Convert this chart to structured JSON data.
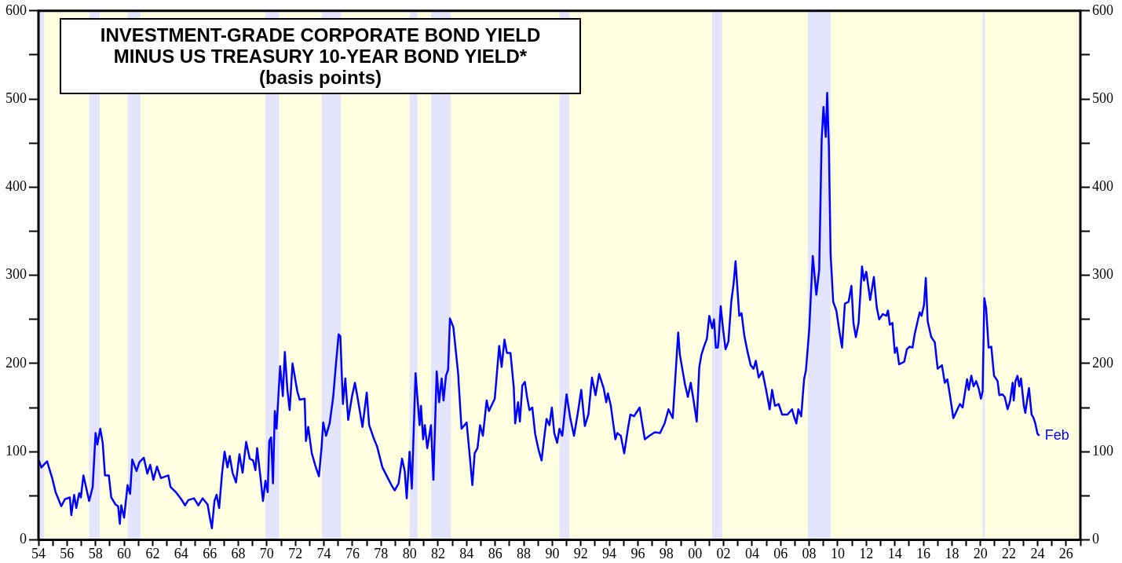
{
  "chart_data": {
    "type": "line",
    "title": "INVESTMENT-GRADE CORPORATE BOND YIELD MINUS US TREASURY 10-YEAR BOND YIELD*",
    "subtitle": "(basis points)",
    "xlim": [
      1954,
      2027
    ],
    "xticks": [
      {
        "value": 1954,
        "label": "54"
      },
      {
        "value": 1955,
        "label": null
      },
      {
        "value": 1956,
        "label": "56"
      },
      {
        "value": 1957,
        "label": null
      },
      {
        "value": 1958,
        "label": "58"
      },
      {
        "value": 1959,
        "label": null
      },
      {
        "value": 1960,
        "label": "60"
      },
      {
        "value": 1961,
        "label": null
      },
      {
        "value": 1962,
        "label": "62"
      },
      {
        "value": 1963,
        "label": null
      },
      {
        "value": 1964,
        "label": "64"
      },
      {
        "value": 1965,
        "label": null
      },
      {
        "value": 1966,
        "label": "66"
      },
      {
        "value": 1967,
        "label": null
      },
      {
        "value": 1968,
        "label": "68"
      },
      {
        "value": 1969,
        "label": null
      },
      {
        "value": 1970,
        "label": "70"
      },
      {
        "value": 1971,
        "label": null
      },
      {
        "value": 1972,
        "label": "72"
      },
      {
        "value": 1973,
        "label": null
      },
      {
        "value": 1974,
        "label": "74"
      },
      {
        "value": 1975,
        "label": null
      },
      {
        "value": 1976,
        "label": "76"
      },
      {
        "value": 1977,
        "label": null
      },
      {
        "value": 1978,
        "label": "78"
      },
      {
        "value": 1979,
        "label": null
      },
      {
        "value": 1980,
        "label": "80"
      },
      {
        "value": 1981,
        "label": null
      },
      {
        "value": 1982,
        "label": "82"
      },
      {
        "value": 1983,
        "label": null
      },
      {
        "value": 1984,
        "label": "84"
      },
      {
        "value": 1985,
        "label": null
      },
      {
        "value": 1986,
        "label": "86"
      },
      {
        "value": 1987,
        "label": null
      },
      {
        "value": 1988,
        "label": "88"
      },
      {
        "value": 1989,
        "label": null
      },
      {
        "value": 1990,
        "label": "90"
      },
      {
        "value": 1991,
        "label": null
      },
      {
        "value": 1992,
        "label": "92"
      },
      {
        "value": 1993,
        "label": null
      },
      {
        "value": 1994,
        "label": "94"
      },
      {
        "value": 1995,
        "label": null
      },
      {
        "value": 1996,
        "label": "96"
      },
      {
        "value": 1997,
        "label": null
      },
      {
        "value": 1998,
        "label": "98"
      },
      {
        "value": 1999,
        "label": null
      },
      {
        "value": 2000,
        "label": "00"
      },
      {
        "value": 2001,
        "label": null
      },
      {
        "value": 2002,
        "label": "02"
      },
      {
        "value": 2003,
        "label": null
      },
      {
        "value": 2004,
        "label": "04"
      },
      {
        "value": 2005,
        "label": null
      },
      {
        "value": 2006,
        "label": "06"
      },
      {
        "value": 2007,
        "label": null
      },
      {
        "value": 2008,
        "label": "08"
      },
      {
        "value": 2009,
        "label": null
      },
      {
        "value": 2010,
        "label": "10"
      },
      {
        "value": 2011,
        "label": null
      },
      {
        "value": 2012,
        "label": "12"
      },
      {
        "value": 2013,
        "label": null
      },
      {
        "value": 2014,
        "label": "14"
      },
      {
        "value": 2015,
        "label": null
      },
      {
        "value": 2016,
        "label": "16"
      },
      {
        "value": 2017,
        "label": null
      },
      {
        "value": 2018,
        "label": "18"
      },
      {
        "value": 2019,
        "label": null
      },
      {
        "value": 2020,
        "label": "20"
      },
      {
        "value": 2021,
        "label": null
      },
      {
        "value": 2022,
        "label": "22"
      },
      {
        "value": 2023,
        "label": null
      },
      {
        "value": 2024,
        "label": "24"
      },
      {
        "value": 2025,
        "label": null
      },
      {
        "value": 2026,
        "label": "26"
      },
      {
        "value": 2027,
        "label": null
      }
    ],
    "ylim": [
      0,
      600
    ],
    "yticks": [
      0,
      {
        "value": 50,
        "label": null
      },
      100,
      {
        "value": 150,
        "label": null
      },
      200,
      {
        "value": 250,
        "label": null
      },
      300,
      {
        "value": 350,
        "label": null
      },
      400,
      {
        "value": 450,
        "label": null
      },
      500,
      {
        "value": 550,
        "label": null
      },
      600
    ],
    "y2lim": [
      0,
      600
    ],
    "y2ticks": [
      0,
      {
        "value": 50,
        "label": null
      },
      100,
      {
        "value": 150,
        "label": null
      },
      200,
      {
        "value": 250,
        "label": null
      },
      300,
      {
        "value": 350,
        "label": null
      },
      400,
      {
        "value": 450,
        "label": null
      },
      500,
      {
        "value": 550,
        "label": null
      },
      600
    ],
    "legend": false,
    "marker": "none",
    "line_style": "solid",
    "bands": [
      {
        "axis": "x",
        "from": 1954,
        "to": 1954.4,
        "color": "#e4e4fc"
      },
      {
        "axis": "x",
        "from": 1957.55,
        "to": 1958.3,
        "color": "#e4e4fc"
      },
      {
        "axis": "x",
        "from": 1960.25,
        "to": 1961.15,
        "color": "#e4e4fc"
      },
      {
        "axis": "x",
        "from": 1969.9,
        "to": 1970.85,
        "color": "#e4e4fc"
      },
      {
        "axis": "x",
        "from": 1973.85,
        "to": 1975.2,
        "color": "#e4e4fc"
      },
      {
        "axis": "x",
        "from": 1980.0,
        "to": 1980.55,
        "color": "#e4e4fc"
      },
      {
        "axis": "x",
        "from": 1981.5,
        "to": 1982.9,
        "color": "#e4e4fc"
      },
      {
        "axis": "x",
        "from": 1990.5,
        "to": 1991.2,
        "color": "#e4e4fc"
      },
      {
        "axis": "x",
        "from": 2001.2,
        "to": 2001.9,
        "color": "#e4e4fc"
      },
      {
        "axis": "x",
        "from": 2007.9,
        "to": 2009.5,
        "color": "#e4e4fc"
      },
      {
        "axis": "x",
        "from": 2020.15,
        "to": 2020.3,
        "color": "#e4e4fc"
      }
    ],
    "annotations": [
      {
        "text": "Feb",
        "x": 2024.13,
        "y": 118
      }
    ],
    "series": [
      {
        "color": "#0000ff",
        "x": [
          1954.03,
          1954.2,
          1954.6,
          1954.96,
          1955.2,
          1955.6,
          1955.85,
          1956.2,
          1956.3,
          1956.5,
          1956.65,
          1956.85,
          1956.97,
          1957.15,
          1957.55,
          1957.8,
          1958.0,
          1958.13,
          1958.33,
          1958.5,
          1958.66,
          1958.93,
          1959.1,
          1959.4,
          1959.58,
          1959.7,
          1959.8,
          1960.0,
          1960.24,
          1960.42,
          1960.57,
          1960.87,
          1961.07,
          1961.38,
          1961.63,
          1961.83,
          1962.05,
          1962.3,
          1962.58,
          1963.1,
          1963.25,
          1963.63,
          1964.0,
          1964.27,
          1964.5,
          1964.9,
          1965.2,
          1965.5,
          1965.85,
          1966.0,
          1966.15,
          1966.33,
          1966.48,
          1966.66,
          1966.86,
          1967.04,
          1967.24,
          1967.4,
          1967.6,
          1967.84,
          1968.08,
          1968.3,
          1968.55,
          1968.8,
          1969.04,
          1969.2,
          1969.32,
          1969.52,
          1969.73,
          1969.9,
          1970.06,
          1970.17,
          1970.3,
          1970.43,
          1970.56,
          1970.68,
          1970.93,
          1971.12,
          1971.26,
          1971.44,
          1971.6,
          1971.8,
          1972.14,
          1972.3,
          1972.65,
          1972.74,
          1972.9,
          1973.15,
          1973.4,
          1973.65,
          1973.83,
          1973.95,
          1974.15,
          1974.4,
          1974.65,
          1974.83,
          1975.03,
          1975.15,
          1975.33,
          1975.5,
          1975.7,
          1975.97,
          1976.17,
          1976.35,
          1976.7,
          1977.0,
          1977.17,
          1977.47,
          1977.72,
          1978.1,
          1978.48,
          1978.73,
          1978.96,
          1979.23,
          1979.47,
          1979.66,
          1979.8,
          1980.0,
          1980.16,
          1980.42,
          1980.7,
          1980.8,
          1980.95,
          1981.07,
          1981.24,
          1981.5,
          1981.67,
          1981.9,
          1982.07,
          1982.25,
          1982.38,
          1982.55,
          1982.7,
          1982.83,
          1983.07,
          1983.4,
          1983.64,
          1984.0,
          1984.2,
          1984.4,
          1984.56,
          1984.76,
          1984.94,
          1985.14,
          1985.4,
          1985.56,
          1985.97,
          1986.28,
          1986.45,
          1986.65,
          1986.82,
          1987.07,
          1987.3,
          1987.4,
          1987.6,
          1987.73,
          1987.9,
          1988.08,
          1988.23,
          1988.4,
          1988.6,
          1988.8,
          1989.04,
          1989.25,
          1989.42,
          1989.6,
          1989.8,
          1989.97,
          1990.14,
          1990.34,
          1990.5,
          1990.7,
          1991.0,
          1991.27,
          1991.52,
          1991.77,
          1992.03,
          1992.28,
          1992.53,
          1992.78,
          1993.03,
          1993.28,
          1993.6,
          1993.78,
          1993.9,
          1994.1,
          1994.42,
          1994.55,
          1994.8,
          1995.04,
          1995.3,
          1995.47,
          1995.72,
          1996.12,
          1996.48,
          1996.8,
          1997.18,
          1997.55,
          1997.87,
          1998.14,
          1998.44,
          1998.82,
          1998.94,
          1999.15,
          1999.3,
          1999.5,
          1999.7,
          1999.9,
          2000.12,
          2000.3,
          2000.45,
          2000.65,
          2000.83,
          2001.0,
          2001.2,
          2001.33,
          2001.46,
          2001.6,
          2001.66,
          2001.8,
          2001.97,
          2002.14,
          2002.34,
          2002.54,
          2002.7,
          2002.84,
          2003.1,
          2003.26,
          2003.45,
          2003.67,
          2003.9,
          2004.1,
          2004.26,
          2004.46,
          2004.72,
          2004.98,
          2005.23,
          2005.4,
          2005.6,
          2005.86,
          2006.1,
          2006.48,
          2006.8,
          2006.93,
          2007.1,
          2007.24,
          2007.44,
          2007.64,
          2007.77,
          2008.0,
          2008.25,
          2008.5,
          2008.7,
          2008.87,
          2009.0,
          2009.16,
          2009.26,
          2009.38,
          2009.5,
          2009.68,
          2009.9,
          2010.14,
          2010.3,
          2010.5,
          2010.76,
          2010.96,
          2011.1,
          2011.27,
          2011.46,
          2011.7,
          2011.84,
          2012.0,
          2012.27,
          2012.53,
          2012.73,
          2012.9,
          2013.16,
          2013.4,
          2013.52,
          2013.65,
          2013.83,
          2014.0,
          2014.14,
          2014.3,
          2014.66,
          2014.84,
          2015.03,
          2015.24,
          2015.4,
          2015.74,
          2015.87,
          2016.04,
          2016.17,
          2016.3,
          2016.55,
          2016.8,
          2017.0,
          2017.3,
          2017.5,
          2017.68,
          2017.86,
          2018.1,
          2018.3,
          2018.56,
          2018.75,
          2019.06,
          2019.18,
          2019.36,
          2019.52,
          2019.7,
          2019.87,
          2020.03,
          2020.15,
          2020.27,
          2020.4,
          2020.57,
          2020.76,
          2020.95,
          2021.2,
          2021.32,
          2021.53,
          2021.7,
          2021.9,
          2022.07,
          2022.25,
          2022.33,
          2022.45,
          2022.59,
          2022.72,
          2022.84,
          2023.04,
          2023.14,
          2023.3,
          2023.4,
          2023.58,
          2023.7,
          2023.84,
          2024.0,
          2024.13
        ],
        "values": [
          90,
          82,
          89,
          70,
          54,
          38,
          46,
          48,
          28,
          51,
          36,
          53,
          48,
          73,
          44,
          60,
          121,
          108,
          126,
          110,
          73,
          73,
          48,
          40,
          38,
          18,
          39,
          25,
          62,
          52,
          91,
          78,
          88,
          93,
          75,
          85,
          68,
          83,
          70,
          73,
          60,
          54,
          46,
          39,
          45,
          47,
          39,
          47,
          40,
          26,
          13,
          44,
          51,
          36,
          75,
          100,
          82,
          95,
          76,
          65,
          97,
          76,
          111,
          92,
          90,
          79,
          104,
          76,
          44,
          67,
          54,
          112,
          116,
          64,
          146,
          126,
          197,
          163,
          213,
          170,
          147,
          200,
          168,
          159,
          160,
          112,
          128,
          98,
          84,
          72,
          104,
          133,
          118,
          132,
          162,
          197,
          233,
          231,
          154,
          183,
          136,
          163,
          178,
          162,
          128,
          167,
          130,
          116,
          106,
          82,
          70,
          62,
          56,
          64,
          92,
          78,
          47,
          100,
          58,
          189,
          130,
          152,
          114,
          130,
          104,
          130,
          68,
          191,
          156,
          183,
          158,
          186,
          193,
          251,
          241,
          189,
          126,
          133,
          98,
          62,
          98,
          104,
          130,
          118,
          158,
          146,
          160,
          220,
          196,
          227,
          212,
          212,
          173,
          132,
          156,
          134,
          175,
          179,
          162,
          147,
          150,
          120,
          102,
          90,
          114,
          137,
          130,
          150,
          121,
          110,
          126,
          118,
          165,
          137,
          118,
          142,
          170,
          129,
          142,
          184,
          164,
          188,
          172,
          156,
          166,
          152,
          114,
          121,
          118,
          98,
          126,
          142,
          140,
          150,
          114,
          118,
          122,
          121,
          132,
          148,
          138,
          235,
          210,
          190,
          176,
          162,
          178,
          158,
          134,
          196,
          210,
          220,
          228,
          254,
          240,
          250,
          218,
          218,
          228,
          265,
          238,
          216,
          225,
          270,
          290,
          316,
          254,
          257,
          232,
          214,
          198,
          194,
          203,
          184,
          191,
          170,
          148,
          170,
          152,
          154,
          142,
          142,
          148,
          140,
          132,
          148,
          140,
          182,
          192,
          238,
          322,
          278,
          306,
          453,
          491,
          457,
          507,
          446,
          324,
          270,
          260,
          234,
          218,
          268,
          270,
          288,
          246,
          230,
          246,
          310,
          294,
          304,
          272,
          298,
          264,
          250,
          256,
          254,
          260,
          244,
          246,
          212,
          218,
          199,
          202,
          216,
          219,
          218,
          234,
          258,
          254,
          266,
          297,
          248,
          230,
          224,
          194,
          198,
          178,
          182,
          164,
          138,
          145,
          154,
          150,
          182,
          170,
          186,
          174,
          180,
          172,
          160,
          168,
          274,
          262,
          218,
          219,
          186,
          180,
          164,
          165,
          162,
          148,
          157,
          178,
          158,
          180,
          186,
          174,
          183,
          152,
          144,
          162,
          172,
          142,
          139,
          132,
          120,
          118
        ]
      }
    ]
  }
}
